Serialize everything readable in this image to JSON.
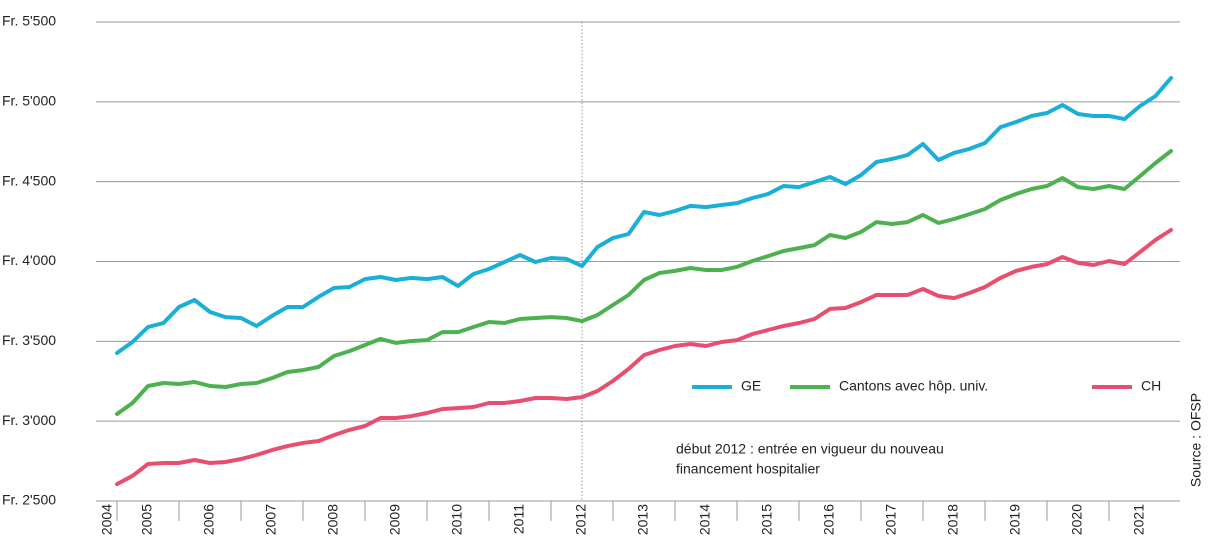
{
  "chart_data": {
    "type": "line",
    "x": [
      2005,
      2005.25,
      2005.5,
      2005.75,
      2006,
      2006.25,
      2006.5,
      2006.75,
      2007,
      2007.25,
      2007.5,
      2007.75,
      2008,
      2008.25,
      2008.5,
      2008.75,
      2009,
      2009.25,
      2009.5,
      2009.75,
      2010,
      2010.25,
      2010.5,
      2010.75,
      2011,
      2011.25,
      2011.5,
      2011.75,
      2012,
      2012.25,
      2012.5,
      2012.75,
      2013,
      2013.25,
      2013.5,
      2013.75,
      2014,
      2014.25,
      2014.5,
      2014.75,
      2015,
      2015.25,
      2015.5,
      2015.75,
      2016,
      2016.25,
      2016.5,
      2016.75,
      2017,
      2017.25,
      2017.5,
      2017.75,
      2018,
      2018.25,
      2018.5,
      2018.75,
      2019,
      2019.25,
      2019.5,
      2019.75,
      2020,
      2020.25,
      2020.5,
      2020.75,
      2021,
      2021.25,
      2021.5,
      2021.75,
      2022
    ],
    "series": [
      {
        "name": "GE",
        "color": "#1aafd6",
        "values": [
          3427,
          3496,
          3590,
          3615,
          3715,
          3759,
          3684,
          3652,
          3646,
          3596,
          3659,
          3715,
          3715,
          3778,
          3834,
          3840,
          3890,
          3903,
          3884,
          3897,
          3890,
          3903,
          3847,
          3922,
          3953,
          3997,
          4041,
          3997,
          4022,
          4016,
          3972,
          4091,
          4147,
          4172,
          4310,
          4291,
          4316,
          4348,
          4341,
          4354,
          4366,
          4398,
          4423,
          4473,
          4466,
          4498,
          4529,
          4485,
          4542,
          4623,
          4642,
          4667,
          4736,
          4636,
          4680,
          4705,
          4742,
          4842,
          4874,
          4911,
          4930,
          4980,
          4924,
          4911,
          4911,
          4892,
          4974,
          5036,
          5149
        ]
      },
      {
        "name": "Cantons avec hôp. univ.",
        "color": "#4db14f",
        "values": [
          3045,
          3114,
          3220,
          3239,
          3233,
          3245,
          3220,
          3214,
          3233,
          3239,
          3270,
          3308,
          3320,
          3339,
          3408,
          3439,
          3477,
          3515,
          3490,
          3502,
          3508,
          3558,
          3558,
          3590,
          3621,
          3615,
          3640,
          3646,
          3652,
          3646,
          3627,
          3665,
          3728,
          3790,
          3884,
          3928,
          3941,
          3959,
          3947,
          3947,
          3966,
          4003,
          4034,
          4066,
          4084,
          4103,
          4166,
          4147,
          4185,
          4247,
          4235,
          4247,
          4291,
          4241,
          4266,
          4297,
          4329,
          4385,
          4423,
          4454,
          4473,
          4523,
          4466,
          4454,
          4473,
          4454,
          4535,
          4617,
          4692
        ]
      },
      {
        "name": "CH",
        "color": "#e84f6f",
        "values": [
          2606,
          2657,
          2732,
          2738,
          2738,
          2757,
          2738,
          2744,
          2763,
          2788,
          2819,
          2844,
          2863,
          2876,
          2913,
          2945,
          2970,
          3020,
          3020,
          3032,
          3051,
          3076,
          3082,
          3089,
          3114,
          3114,
          3126,
          3145,
          3145,
          3139,
          3151,
          3189,
          3252,
          3327,
          3414,
          3446,
          3471,
          3483,
          3471,
          3496,
          3508,
          3546,
          3571,
          3596,
          3615,
          3640,
          3703,
          3709,
          3746,
          3790,
          3790,
          3790,
          3828,
          3784,
          3771,
          3803,
          3840,
          3897,
          3941,
          3966,
          3984,
          4028,
          3991,
          3978,
          4003,
          3984,
          4059,
          4135,
          4197
        ]
      }
    ],
    "xlim": [
      2004.726,
      2022.145
    ],
    "xticks": [
      2004,
      2005,
      2006,
      2007,
      2008,
      2009,
      2010,
      2011,
      2012,
      2013,
      2014,
      2015,
      2016,
      2017,
      2018,
      2019,
      2020,
      2021
    ],
    "ylim": [
      2500,
      5500
    ],
    "yticks": [
      {
        "value": 2500,
        "label": "Fr. 2'500"
      },
      {
        "value": 3000,
        "label": "Fr. 3'000"
      },
      {
        "value": 3500,
        "label": "Fr. 3'500"
      },
      {
        "value": 4000,
        "label": "Fr. 4'000"
      },
      {
        "value": 4500,
        "label": "Fr. 4'500"
      },
      {
        "value": 5000,
        "label": "Fr. 5'000"
      },
      {
        "value": 5500,
        "label": "Fr. 5'500"
      }
    ],
    "grid": true,
    "annotation": [
      "début 2012 : entrée en vigueur du nouveau",
      "financement hospitalier"
    ],
    "source": "Source : OFSP"
  }
}
